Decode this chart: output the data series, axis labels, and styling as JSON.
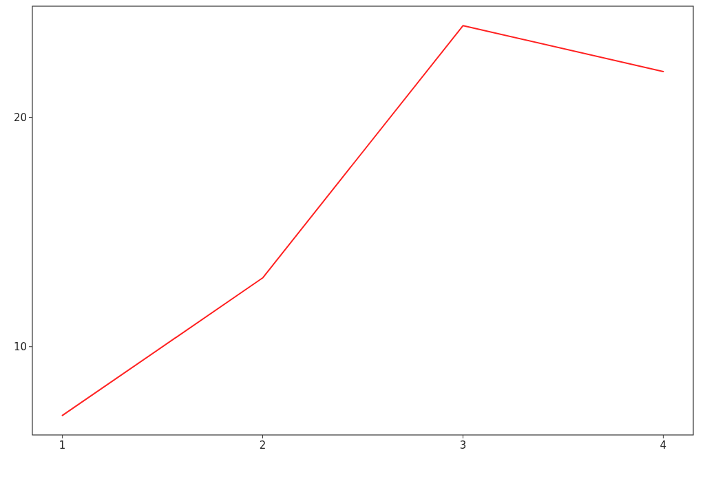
{
  "chart_data": {
    "type": "line",
    "x": [
      1,
      2,
      3,
      4
    ],
    "series": [
      {
        "color": "#ff2020",
        "values": [
          7,
          13,
          24,
          22
        ]
      }
    ],
    "xlim": [
      0.85,
      4.15
    ],
    "xticks": [
      1,
      2,
      3,
      4
    ],
    "ylim": [
      6.15,
      24.85
    ],
    "yticks": [
      10,
      20
    ],
    "marker": "none",
    "line_style": "solid"
  }
}
